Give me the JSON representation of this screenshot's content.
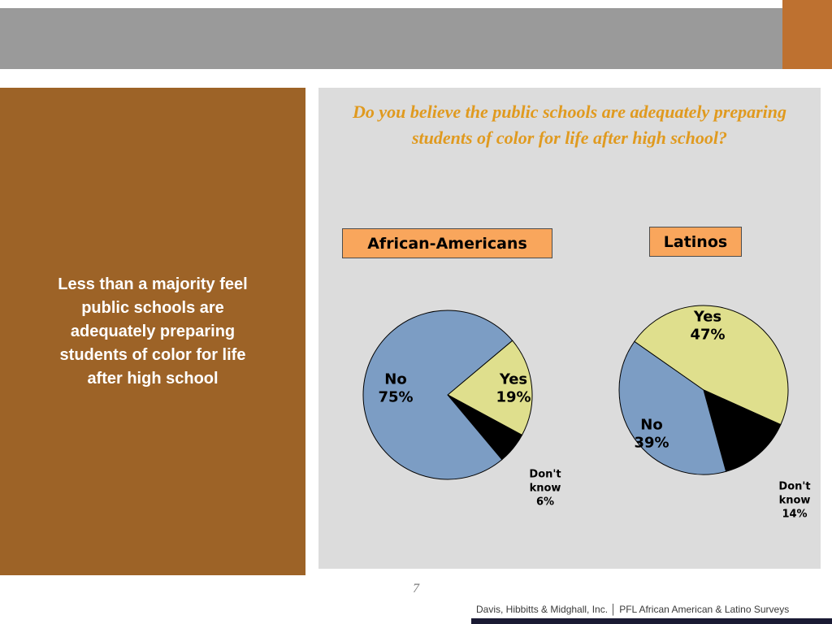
{
  "slide": {
    "page_number": "7",
    "footer_credit": "Davis, Hibbitts & Midghall, Inc. │ PFL African American  & Latino Surveys"
  },
  "left_panel": {
    "text": "Less than a  majority feel public schools are adequately preparing students of color for life after high school"
  },
  "main": {
    "title": "Do you believe the public schools are adequately preparing students of color for life after high school?"
  },
  "colors": {
    "header_gray": "#9A9A9A",
    "header_accent_orange": "#BE7130",
    "left_panel_brown": "#9D6327",
    "main_panel_gray": "#DCDCDC",
    "title_orange": "#E09A1F",
    "group_label_orange": "#F9A65C",
    "pie_blue": "#7C9DC4",
    "pie_yellow": "#DFDF8D",
    "pie_black": "#000000",
    "footer_bar_navy": "#1A1A33"
  },
  "chart_data": [
    {
      "type": "pie",
      "title": "African-Americans",
      "legend_position": "none",
      "start_angle_deg_clockwise_from_top": 50,
      "slices": [
        {
          "label": "Yes",
          "value": 19,
          "display": "19%",
          "color": "#DFDF8D"
        },
        {
          "label": "Don't know",
          "value": 6,
          "display": "6%",
          "color": "#000000"
        },
        {
          "label": "No",
          "value": 75,
          "display": "75%",
          "color": "#7C9DC4"
        }
      ]
    },
    {
      "type": "pie",
      "title": "Latinos",
      "legend_position": "none",
      "start_angle_deg_clockwise_from_top": 305,
      "slices": [
        {
          "label": "Yes",
          "value": 47,
          "display": "47%",
          "color": "#DFDF8D"
        },
        {
          "label": "Don't know",
          "value": 14,
          "display": "14%",
          "color": "#000000"
        },
        {
          "label": "No",
          "value": 39,
          "display": "39%",
          "color": "#7C9DC4"
        }
      ]
    }
  ]
}
